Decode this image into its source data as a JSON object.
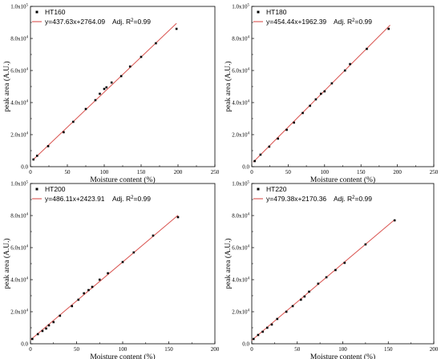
{
  "figure": {
    "accent_colors": {
      "fit_line": "#d9534f",
      "points": "#000000",
      "axes": "#000000"
    }
  },
  "chart_data": [
    {
      "type": "scatter",
      "xlabel": "Moisture content (%)",
      "ylabel": "peak area (A.U.)",
      "xlim": [
        0,
        250
      ],
      "ylim": [
        0,
        100000
      ],
      "xticks": [
        "0",
        "50",
        "100",
        "150",
        "200",
        "250"
      ],
      "yticks": [
        {
          "mant": "0.0",
          "exp": "0"
        },
        {
          "mant": "2.0x10",
          "exp": "4"
        },
        {
          "mant": "4.0x10",
          "exp": "4"
        },
        {
          "mant": "6.0x10",
          "exp": "4"
        },
        {
          "mant": "8.0x10",
          "exp": "4"
        },
        {
          "mant": "1.0x10",
          "exp": "5"
        }
      ],
      "legend": {
        "placement": "top-left",
        "series_name": "HT160",
        "fit_text": "y=437.63x+2764.09",
        "adj_prefix": "Adj. R",
        "adj_sup": "2",
        "adj_value": "=0.99"
      },
      "fit": {
        "slope": 437.63,
        "intercept": 2764.09,
        "x_range": [
          3,
          198
        ]
      },
      "series": [
        {
          "name": "HT160",
          "x": [
            4,
            9,
            24,
            45,
            58,
            75,
            88,
            94,
            100,
            103,
            110,
            123,
            135,
            150,
            170,
            198
          ],
          "y": [
            4500,
            6800,
            12800,
            21500,
            28000,
            36000,
            41500,
            45500,
            48500,
            49500,
            52500,
            56500,
            62500,
            68500,
            77000,
            86000
          ]
        }
      ]
    },
    {
      "type": "scatter",
      "xlabel": "Moisture content (%)",
      "ylabel": "peak area (A.U.)",
      "xlim": [
        0,
        250
      ],
      "ylim": [
        0,
        100000
      ],
      "xticks": [
        "0",
        "50",
        "100",
        "150",
        "200",
        "250"
      ],
      "yticks": [
        {
          "mant": "0.0",
          "exp": "0"
        },
        {
          "mant": "2.0x10",
          "exp": "4"
        },
        {
          "mant": "4.0x10",
          "exp": "4"
        },
        {
          "mant": "6.0x10",
          "exp": "4"
        },
        {
          "mant": "8.0x10",
          "exp": "4"
        },
        {
          "mant": "1.0x10",
          "exp": "5"
        }
      ],
      "legend": {
        "placement": "top-left",
        "series_name": "HT180",
        "fit_text": "y=454.44x+1962.39",
        "adj_prefix": "Adj. R",
        "adj_sup": "2",
        "adj_value": "=0.99"
      },
      "fit": {
        "slope": 454.44,
        "intercept": 1962.39,
        "x_range": [
          2,
          190
        ]
      },
      "series": [
        {
          "name": "HT180",
          "x": [
            4,
            12,
            24,
            36,
            48,
            58,
            70,
            80,
            88,
            95,
            100,
            110,
            128,
            135,
            158,
            188
          ],
          "y": [
            3500,
            7500,
            12500,
            17500,
            23000,
            27500,
            33500,
            38000,
            42000,
            45500,
            47000,
            52000,
            60000,
            64000,
            73500,
            86000
          ]
        }
      ]
    },
    {
      "type": "scatter",
      "xlabel": "Moisture content (%)",
      "ylabel": "peak area (A.U.)",
      "xlim": [
        0,
        200
      ],
      "ylim": [
        0,
        100000
      ],
      "xticks": [
        "0",
        "50",
        "100",
        "150",
        "200"
      ],
      "yticks": [
        {
          "mant": "0.0",
          "exp": "0"
        },
        {
          "mant": "2.0x10",
          "exp": "4"
        },
        {
          "mant": "4.0x10",
          "exp": "4"
        },
        {
          "mant": "6.0x10",
          "exp": "4"
        },
        {
          "mant": "8.0x10",
          "exp": "4"
        },
        {
          "mant": "1.0x10",
          "exp": "5"
        }
      ],
      "legend": {
        "placement": "top-left",
        "series_name": "HT200",
        "fit_text": "y=486.11x+2423.91",
        "adj_prefix": "Adj. R",
        "adj_sup": "2",
        "adj_value": "=0.99"
      },
      "fit": {
        "slope": 486.11,
        "intercept": 2423.91,
        "x_range": [
          0,
          160
        ]
      },
      "series": [
        {
          "name": "HT200",
          "x": [
            2,
            8,
            13,
            17,
            20,
            25,
            32,
            45,
            52,
            58,
            63,
            67,
            75,
            84,
            100,
            112,
            133,
            160
          ],
          "y": [
            3000,
            6000,
            8000,
            9500,
            11500,
            13500,
            17500,
            23500,
            27500,
            31500,
            33500,
            35500,
            40000,
            44000,
            51000,
            57000,
            67500,
            79000
          ]
        }
      ]
    },
    {
      "type": "scatter",
      "xlabel": "Moisture content (%)",
      "ylabel": "peak area (A.U.)",
      "xlim": [
        0,
        200
      ],
      "ylim": [
        0,
        100000
      ],
      "xticks": [
        "0",
        "50",
        "100",
        "150",
        "200"
      ],
      "yticks": [
        {
          "mant": "0.0",
          "exp": "0"
        },
        {
          "mant": "2.0x10",
          "exp": "4"
        },
        {
          "mant": "4.0x10",
          "exp": "4"
        },
        {
          "mant": "6.0x10",
          "exp": "4"
        },
        {
          "mant": "8.0x10",
          "exp": "4"
        },
        {
          "mant": "1.0x10",
          "exp": "5"
        }
      ],
      "legend": {
        "placement": "top-left",
        "series_name": "HT220",
        "fit_text": "y=479.38x+2170.36",
        "adj_prefix": "Adj. R",
        "adj_sup": "2",
        "adj_value": "=0.99"
      },
      "fit": {
        "slope": 479.38,
        "intercept": 2170.36,
        "x_range": [
          0,
          157
        ]
      },
      "series": [
        {
          "name": "HT220",
          "x": [
            2,
            7,
            12,
            17,
            22,
            28,
            38,
            45,
            54,
            58,
            63,
            73,
            82,
            92,
            102,
            125,
            157
          ],
          "y": [
            3000,
            5500,
            7500,
            10000,
            12000,
            15500,
            20000,
            23500,
            27500,
            29500,
            32500,
            37500,
            41500,
            46000,
            50500,
            62000,
            77000
          ]
        }
      ]
    }
  ]
}
